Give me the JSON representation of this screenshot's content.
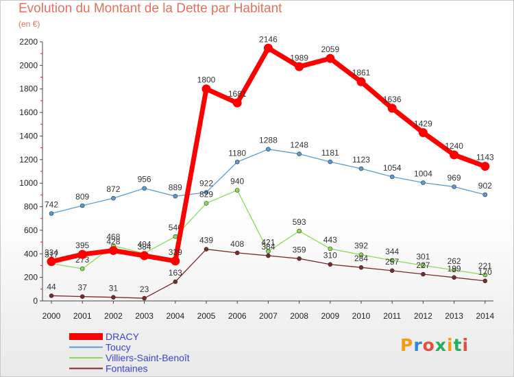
{
  "title": "Evolution du Montant de la Dette par Habitant",
  "unit": "(en €)",
  "logo": {
    "text": "Proxiti",
    "colors": [
      "#f39c12",
      "#2e86de",
      "#e74c3c",
      "#27ae60",
      "#f39c12",
      "#27ae60",
      "#e74c3c"
    ]
  },
  "chart_data": {
    "type": "line",
    "x": [
      "2000",
      "2001",
      "2002",
      "2003",
      "2004",
      "2005",
      "2006",
      "2007",
      "2008",
      "2009",
      "2010",
      "2011",
      "2012",
      "2013",
      "2014"
    ],
    "ylim": [
      0,
      2200
    ],
    "yticks": [
      0,
      200,
      400,
      600,
      800,
      1000,
      1200,
      1400,
      1600,
      1800,
      2000,
      2200
    ],
    "grid": false,
    "legend": "bottom-left",
    "series": [
      {
        "name": "Toucy",
        "color": "#5a9bd5",
        "values": [
          742,
          809,
          872,
          956,
          889,
          922,
          1180,
          1288,
          1248,
          1181,
          1123,
          1054,
          1004,
          969,
          902
        ]
      },
      {
        "name": "Villiers-Saint-Benoît",
        "color": "#88dd55",
        "values": [
          317,
          273,
          468,
          404,
          546,
          829,
          940,
          421,
          593,
          443,
          392,
          344,
          301,
          262,
          221
        ]
      },
      {
        "name": "Fontaines",
        "color": "#7a2a2a",
        "values": [
          44,
          37,
          31,
          23,
          163,
          439,
          408,
          384,
          359,
          310,
          284,
          257,
          227,
          199,
          170
        ]
      },
      {
        "name": "DRACY",
        "color": "#ff0000",
        "values": [
          334,
          395,
          428,
          384,
          339,
          1800,
          1681,
          2146,
          1989,
          2059,
          1861,
          1636,
          1429,
          1240,
          1143
        ]
      }
    ],
    "legend_order": [
      "DRACY",
      "Toucy",
      "Villiers-Saint-Benoît",
      "Fontaines"
    ]
  }
}
